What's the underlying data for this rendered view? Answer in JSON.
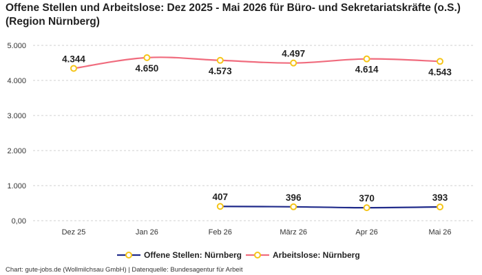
{
  "header": {
    "title": "Offene Stellen und Arbeitslose: Dez 2025 - Mai 2026 für Büro- und Sekretariatskräfte (o.S.) (Region Nürnberg)"
  },
  "footer": {
    "source": "Chart: gute-jobs.de (Wollmilchsau GmbH) | Datenquelle: Bundesagentur für Arbeit"
  },
  "chart_data": {
    "type": "line",
    "title": "Offene Stellen und Arbeitslose: Dez 2025 - Mai 2026 für Büro- und Sekretariatskräfte (o.S.) (Region Nürnberg)",
    "categories": [
      "Dez 25",
      "Jan 26",
      "Feb 26",
      "März 26",
      "Apr 26",
      "Mai 26"
    ],
    "ylim": [
      0,
      5000
    ],
    "yticks": [
      0,
      1000,
      2000,
      3000,
      4000,
      5000
    ],
    "ytick_labels": [
      "0,00",
      "1.000",
      "2.000",
      "3.000",
      "4.000",
      "5.000"
    ],
    "grid": true,
    "legend_position": "bottom",
    "series": [
      {
        "name": "Offene Stellen: Nürnberg",
        "color": "#1f2a8a",
        "values": [
          null,
          null,
          407,
          396,
          370,
          393
        ],
        "labels": [
          "",
          "",
          "407",
          "396",
          "370",
          "393"
        ],
        "label_position": "above"
      },
      {
        "name": "Arbeitslose: Nürnberg",
        "color": "#f06b7d",
        "values": [
          4344,
          4650,
          4573,
          4497,
          4614,
          4543
        ],
        "labels": [
          "4.344",
          "4.650",
          "4.573",
          "4.497",
          "4.614",
          "4.543"
        ],
        "label_position": [
          "above",
          "below",
          "below",
          "above",
          "below",
          "below"
        ]
      }
    ],
    "marker_color": "#f5c518"
  }
}
